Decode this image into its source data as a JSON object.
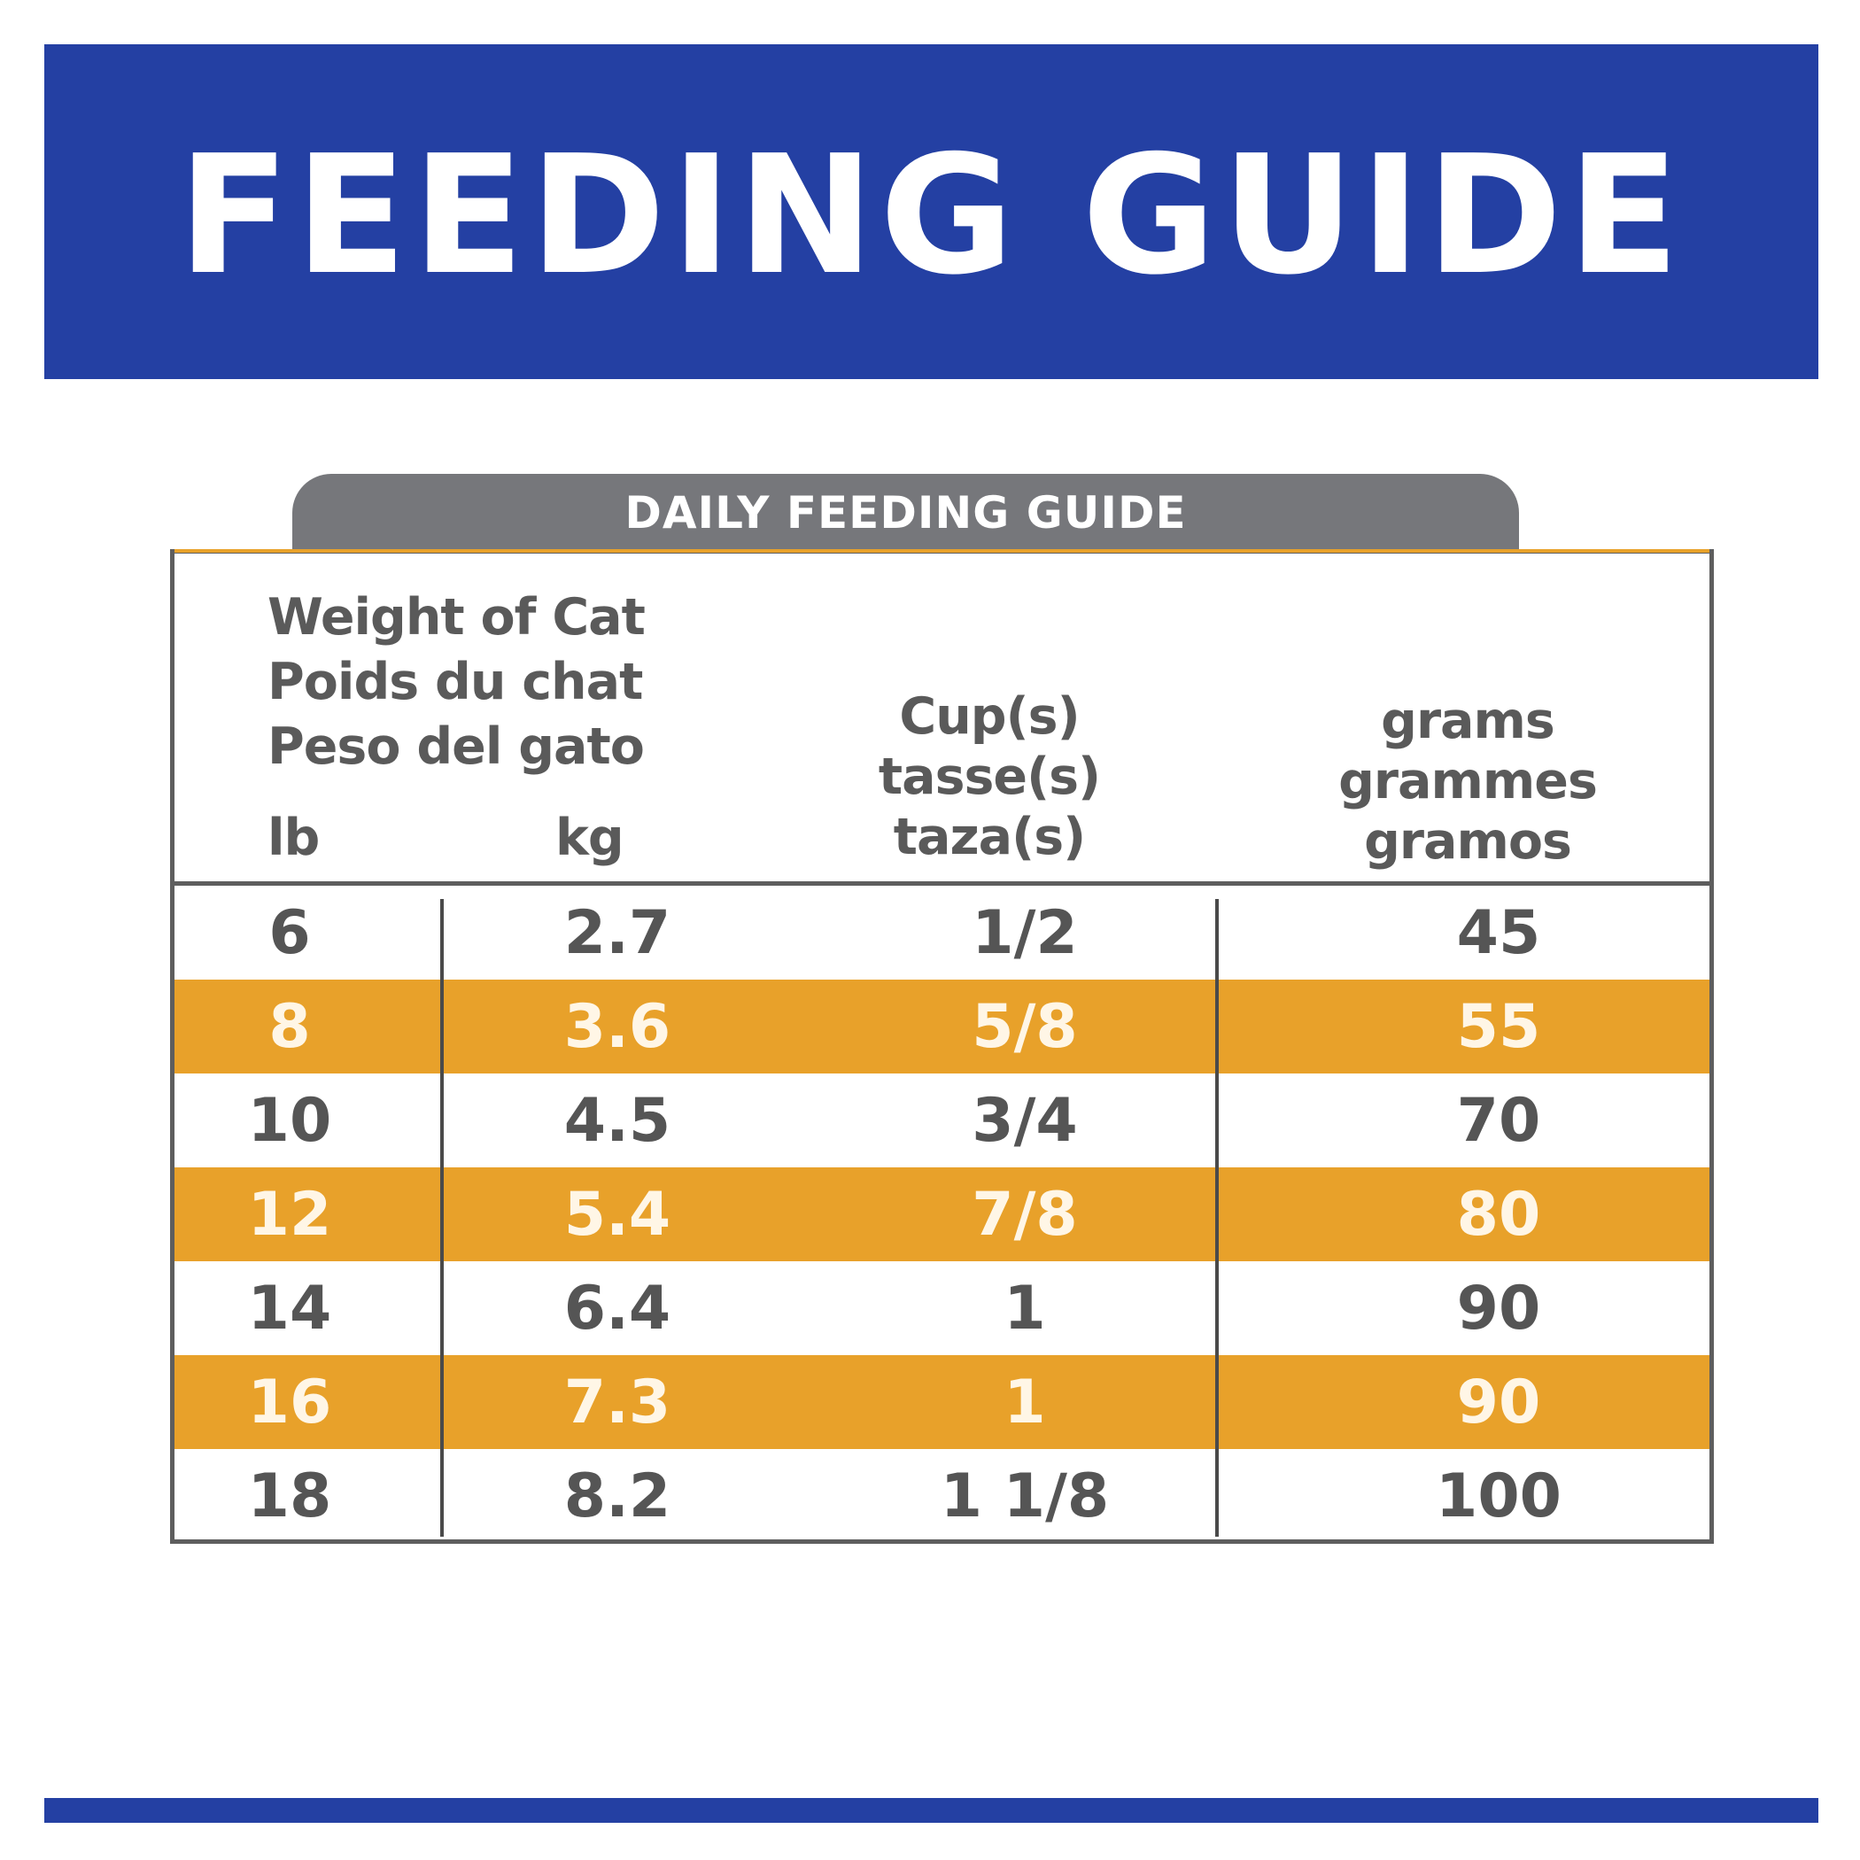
{
  "banner": {
    "title": "FEEDING GUIDE"
  },
  "tab": {
    "label": "DAILY FEEDING GUIDE"
  },
  "table": {
    "headers": {
      "weight": [
        "Weight of Cat",
        "Poids du chat",
        "Peso del gato"
      ],
      "unit_lb": "lb",
      "unit_kg": "kg",
      "cups": [
        "Cup(s)",
        "tasse(s)",
        "taza(s)"
      ],
      "grams": [
        "grams",
        "grammes",
        "gramos"
      ]
    },
    "rows": [
      {
        "lb": "6",
        "kg": "2.7",
        "cups": "1/2",
        "grams": "45"
      },
      {
        "lb": "8",
        "kg": "3.6",
        "cups": "5/8",
        "grams": "55"
      },
      {
        "lb": "10",
        "kg": "4.5",
        "cups": "3/4",
        "grams": "70"
      },
      {
        "lb": "12",
        "kg": "5.4",
        "cups": "7/8",
        "grams": "80"
      },
      {
        "lb": "14",
        "kg": "6.4",
        "cups": "1",
        "grams": "90"
      },
      {
        "lb": "16",
        "kg": "7.3",
        "cups": "1",
        "grams": "90"
      },
      {
        "lb": "18",
        "kg": "8.2",
        "cups": "1 1/8",
        "grams": "100"
      }
    ]
  },
  "colors": {
    "banner_blue": "#2440a3",
    "tab_gray": "#76777b",
    "stripe_orange": "#e8a12a",
    "text_gray": "#555555"
  }
}
